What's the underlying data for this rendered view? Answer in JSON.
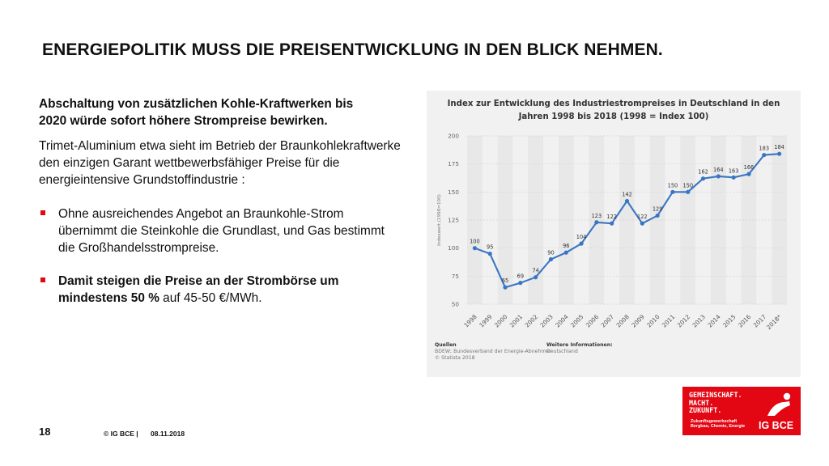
{
  "title": "ENERGIEPOLITIK MUSS DIE PREISENTWICKLUNG IN DEN BLICK NEHMEN.",
  "left": {
    "intro_line1": "Abschaltung von zusätzlichen Kohle-Kraftwerken bis",
    "intro_line2": "2020 würde sofort höhere Strompreise bewirken.",
    "paragraph": "Trimet-Aluminium etwa sieht im Betrieb der Braunkohlekraftwerke den einzigen Garant wettbewerbsfähiger Preise für die energieintensive Grundstoffindustrie :",
    "bullet1": "Ohne ausreichendes Angebot an Braunkohle-Strom übernimmt die Steinkohle die Grundlast, und Gas bestimmt die Großhandelsstrompreise.",
    "bullet2_bold": "Damit steigen die Preise an der Strombörse um mindestens 50 %",
    "bullet2_rest": " auf 45-50 €/MWh."
  },
  "chart_data": {
    "type": "line",
    "title_line1": "Index zur Entwicklung des Industriestrompreises in Deutschland in den",
    "title_line2": "Jahren 1998 bis 2018 (1998 = Index 100)",
    "ylabel": "Indexwert (1998=100)",
    "xlabel": "",
    "ylim": [
      50,
      200
    ],
    "yticks": [
      50,
      75,
      100,
      125,
      150,
      175,
      200
    ],
    "categories": [
      "1998",
      "1999",
      "2000",
      "2001",
      "2002",
      "2003",
      "2004",
      "2005",
      "2006",
      "2007",
      "2008",
      "2009",
      "2010",
      "2011",
      "2012",
      "2013",
      "2014",
      "2015",
      "2016",
      "2017",
      "2018*"
    ],
    "values": [
      100,
      95,
      65,
      69,
      74,
      90,
      96,
      104,
      123,
      122,
      142,
      122,
      129,
      150,
      150,
      162,
      164,
      163,
      166,
      183,
      184
    ],
    "line_color": "#3a75c4",
    "grid": true,
    "sources_label": "Quellen",
    "sources_text": "BDEW; Bundesverband der Energie-Abnehmer",
    "copyright": "© Statista 2018",
    "info_label": "Weitere Informationen:",
    "info_text": "Deutschland"
  },
  "footer": {
    "page_number": "18",
    "copyright": "© IG BCE |",
    "date": "08.11.2018"
  },
  "logo": {
    "slogan": "GEMEINSCHAFT.\nMACHT.\nZUKUNFT.",
    "subline1": "Zukunftsgewerkschaft",
    "subline2": "Bergbau, Chemie, Energie",
    "name": "IG BCE",
    "color": "#e30613"
  }
}
